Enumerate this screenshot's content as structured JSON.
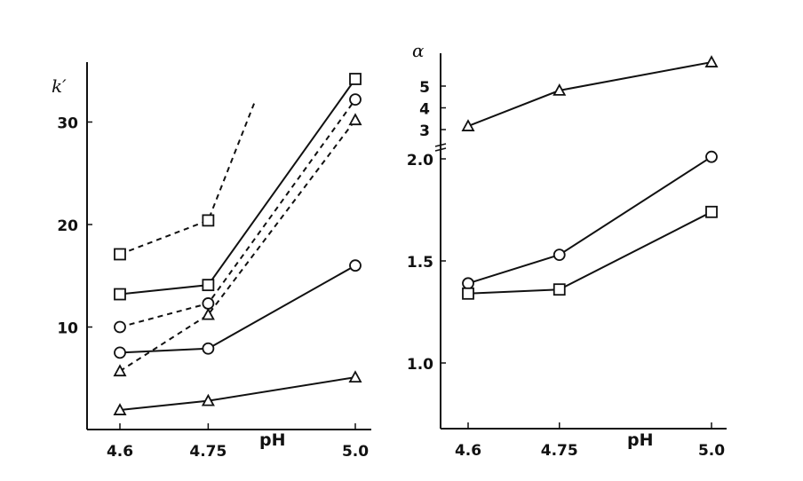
{
  "chart_data": [
    {
      "type": "line",
      "xlabel": "pH",
      "ylabel": "k′",
      "x_ticks": [
        "4.6",
        "4.75",
        "5.0"
      ],
      "y_ticks": [
        "10",
        "20",
        "30"
      ],
      "xlim": [
        4.6,
        5.0
      ],
      "ylim": [
        0,
        36
      ],
      "grid": false,
      "series": [
        {
          "name": "dashed-square",
          "marker": "square",
          "style": "dashed",
          "x": [
            4.6,
            4.75,
            4.83
          ],
          "y": [
            17.1,
            20.4,
            32.1
          ],
          "markers_at": [
            0,
            1
          ]
        },
        {
          "name": "solid-square",
          "marker": "square",
          "style": "solid",
          "x": [
            4.6,
            4.75,
            5.0
          ],
          "y": [
            13.2,
            14.1,
            34.2
          ]
        },
        {
          "name": "dashed-circle",
          "marker": "circle",
          "style": "dashed",
          "x": [
            4.6,
            4.75,
            5.0
          ],
          "y": [
            10.0,
            12.3,
            32.2
          ]
        },
        {
          "name": "dashed-triangle",
          "marker": "triangle",
          "style": "dashed",
          "x": [
            4.6,
            4.75,
            5.0
          ],
          "y": [
            5.7,
            11.2,
            30.2
          ]
        },
        {
          "name": "solid-circle",
          "marker": "circle",
          "style": "solid",
          "x": [
            4.6,
            4.75,
            5.0
          ],
          "y": [
            7.5,
            7.9,
            16.0
          ]
        },
        {
          "name": "solid-triangle",
          "marker": "triangle",
          "style": "solid",
          "x": [
            4.6,
            4.75,
            5.0
          ],
          "y": [
            1.9,
            2.8,
            5.1
          ]
        }
      ]
    },
    {
      "type": "line",
      "xlabel": "pH",
      "ylabel": "α",
      "x_ticks": [
        "4.6",
        "4.75",
        "5.0"
      ],
      "y_ticks_lower": [
        "1.0",
        "1.5",
        "2.0"
      ],
      "y_ticks_upper": [
        "3",
        "4",
        "5"
      ],
      "axis_break": "between 2.0 and 3",
      "xlim": [
        4.6,
        5.0
      ],
      "ylim": [
        0.68,
        6.3
      ],
      "grid": false,
      "series": [
        {
          "name": "triangle",
          "marker": "triangle",
          "style": "solid",
          "x": [
            4.6,
            4.75,
            5.0
          ],
          "y": [
            3.16,
            4.8,
            6.1
          ]
        },
        {
          "name": "circle",
          "marker": "circle",
          "style": "solid",
          "x": [
            4.6,
            4.75,
            5.0
          ],
          "y": [
            1.39,
            1.53,
            2.01
          ]
        },
        {
          "name": "square",
          "marker": "square",
          "style": "solid",
          "x": [
            4.6,
            4.75,
            5.0
          ],
          "y": [
            1.34,
            1.36,
            1.74
          ]
        }
      ]
    }
  ]
}
